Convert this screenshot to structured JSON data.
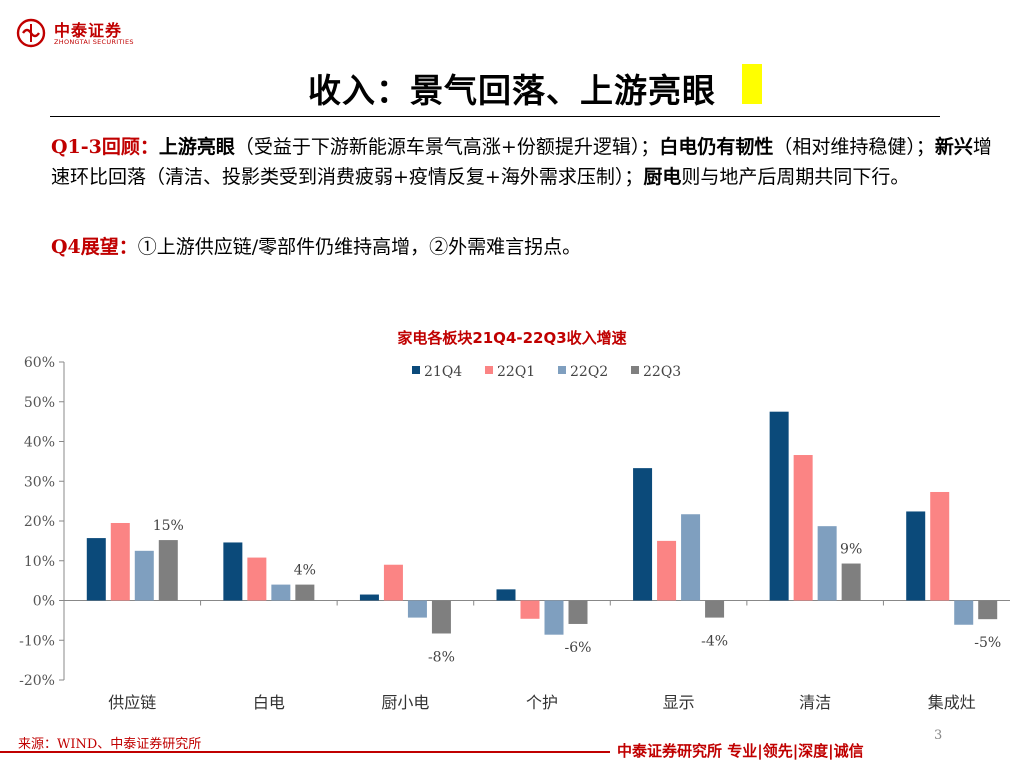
{
  "brand": {
    "name_cn": "中泰证券",
    "name_en": "ZHONGTAI SECURITIES",
    "color": "#c00000"
  },
  "slide": {
    "title": "收入：景气回落、上游亮眼",
    "title_marker_color": "#ffff00",
    "page_number": "3"
  },
  "review": {
    "label": "Q1-3回顾：",
    "upstream_key": "上游亮眼",
    "upstream_text": "（受益于下游新能源车景气高涨+份额提升逻辑）；",
    "white_key": "白电仍有韧性",
    "white_text": "（相对维持稳健）；",
    "new_key": "新兴",
    "new_text": "增速环比回落（清洁、投影类受到消费疲弱+疫情反复+海外需求压制）；",
    "kitchen_key": "厨电",
    "kitchen_text": "则与地产后周期共同下行。"
  },
  "outlook": {
    "label": "Q4展望：",
    "text": "①上游供应链/零部件仍维持高增，②外需难言拐点。"
  },
  "chart_data": {
    "type": "bar",
    "title": "家电各板块21Q4-22Q3收入增速",
    "categories": [
      "供应链",
      "白电",
      "厨小电",
      "个护",
      "显示",
      "清洁",
      "集成灶"
    ],
    "series": [
      {
        "name": "21Q4",
        "color": "#0b4a7a",
        "values": [
          15.7,
          14.6,
          1.5,
          2.8,
          33.3,
          47.5,
          22.4
        ]
      },
      {
        "name": "22Q1",
        "color": "#fb8484",
        "values": [
          19.5,
          10.8,
          9.0,
          -4.6,
          15.0,
          36.6,
          27.3
        ]
      },
      {
        "name": "22Q2",
        "color": "#7f9fbf",
        "values": [
          12.5,
          4.0,
          -4.3,
          -8.6,
          21.7,
          18.7,
          -6.1
        ]
      },
      {
        "name": "22Q3",
        "color": "#7f7f7f",
        "values": [
          15.2,
          4.0,
          -8.3,
          -5.9,
          -4.3,
          9.3,
          -4.7
        ]
      }
    ],
    "data_labels": [
      "15%",
      "4%",
      "-8%",
      "-6%",
      "-4%",
      "9%",
      "-5%"
    ],
    "ylim": [
      -20,
      60
    ],
    "y_ticks": [
      -20,
      -10,
      0,
      10,
      20,
      30,
      40,
      50,
      60
    ],
    "y_tick_labels": [
      "-20%",
      "-10%",
      "0%",
      "10%",
      "20%",
      "30%",
      "40%",
      "50%",
      "60%"
    ],
    "legend_position": "top",
    "grid": false
  },
  "source": "来源：WIND、中泰证券研究所",
  "footer": "中泰证券研究所 专业|领先|深度|诚信"
}
